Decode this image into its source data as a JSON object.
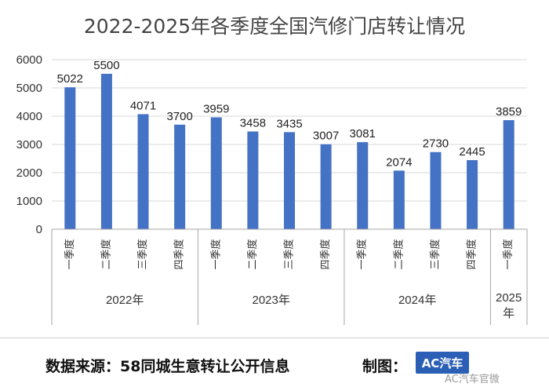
{
  "chart_data": {
    "type": "bar",
    "title": "2022-2025年各季度全国汽修门店转让情况",
    "categories": [
      "一季度",
      "二季度",
      "三季度",
      "四季度",
      "一季度",
      "二季度",
      "三季度",
      "四季度",
      "一季度",
      "二季度",
      "三季度",
      "四季度",
      "一季度"
    ],
    "groups": [
      {
        "label": "2022年",
        "count": 4
      },
      {
        "label": "2023年",
        "count": 4
      },
      {
        "label": "2024年",
        "count": 4
      },
      {
        "label": "2025年",
        "count": 1
      }
    ],
    "values": [
      5022,
      5500,
      4071,
      3700,
      3959,
      3458,
      3435,
      3007,
      3081,
      2074,
      2730,
      2445,
      3859
    ],
    "ylim": [
      0,
      6000
    ],
    "yticks": [
      0,
      1000,
      2000,
      3000,
      4000,
      5000,
      6000
    ],
    "grid": true,
    "bar_color": "#4472c4"
  },
  "footer": {
    "source": "数据来源：58同城生意转让公开信息",
    "credit_label": "制图：",
    "logo_text": "AC汽车",
    "watermark": "AC汽车官微"
  }
}
